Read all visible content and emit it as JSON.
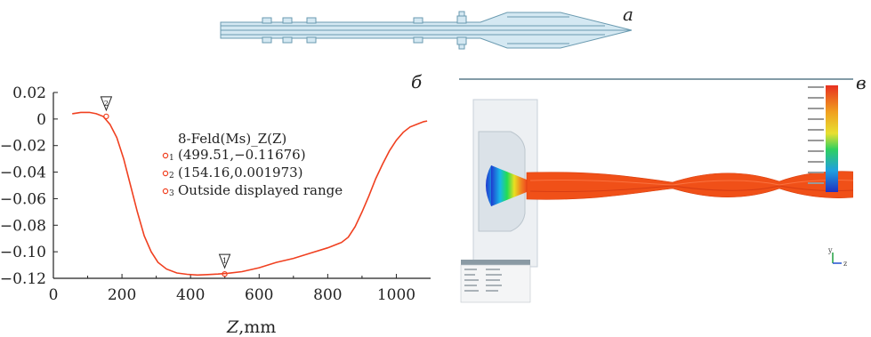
{
  "figure": {
    "panel_a_label": "a",
    "panel_b_label": "б",
    "panel_c_label": "в"
  },
  "chart_data": {
    "type": "line",
    "title": "8-Feld(Ms)_Z(Z)",
    "xlabel_var": "Z",
    "xlabel_unit": ",mm",
    "xlim": [
      0,
      1100
    ],
    "ylim": [
      -0.12,
      0.02
    ],
    "x_ticks": [
      0,
      200,
      400,
      600,
      800,
      1000
    ],
    "y_ticks": [
      0.02,
      0,
      -0.02,
      -0.04,
      -0.06,
      -0.08,
      -0.1,
      -0.12
    ],
    "x_tick_labels": [
      "0",
      "200",
      "400",
      "600",
      "800",
      "1000"
    ],
    "y_tick_labels": [
      "0.02",
      "0",
      "−0.02",
      "−0.04",
      "−0.06",
      "−0.08",
      "−0.10",
      "−0.12"
    ],
    "color": "#f04020",
    "series": [
      {
        "x": [
          55,
          80,
          105,
          125,
          145,
          165,
          185,
          205,
          225,
          245,
          265,
          285,
          305,
          330,
          360,
          390,
          420,
          450,
          480,
          510,
          550,
          600,
          650,
          700,
          750,
          800,
          840,
          860,
          880,
          900,
          920,
          940,
          960,
          980,
          1000,
          1020,
          1040,
          1060,
          1080,
          1090
        ],
        "y": [
          0.004,
          0.005,
          0.005,
          0.004,
          0.002,
          -0.004,
          -0.014,
          -0.03,
          -0.05,
          -0.07,
          -0.088,
          -0.1,
          -0.108,
          -0.113,
          -0.116,
          -0.117,
          -0.1175,
          -0.1172,
          -0.1168,
          -0.1162,
          -0.115,
          -0.112,
          -0.108,
          -0.105,
          -0.101,
          -0.097,
          -0.093,
          -0.089,
          -0.081,
          -0.07,
          -0.058,
          -0.045,
          -0.034,
          -0.024,
          -0.016,
          -0.01,
          -0.006,
          -0.004,
          -0.002,
          -0.0015
        ]
      }
    ],
    "markers": [
      {
        "id": "1",
        "x": 499.51,
        "y": -0.11676,
        "text": "(499.51,−0.11676)"
      },
      {
        "id": "2",
        "x": 154.16,
        "y": 0.001973,
        "text": "(154.16,0.001973)"
      },
      {
        "id": "3",
        "text": "Outside displayed range"
      }
    ],
    "grid": false
  },
  "sim_panel": {
    "axis_y": "y",
    "axis_z": "z"
  }
}
